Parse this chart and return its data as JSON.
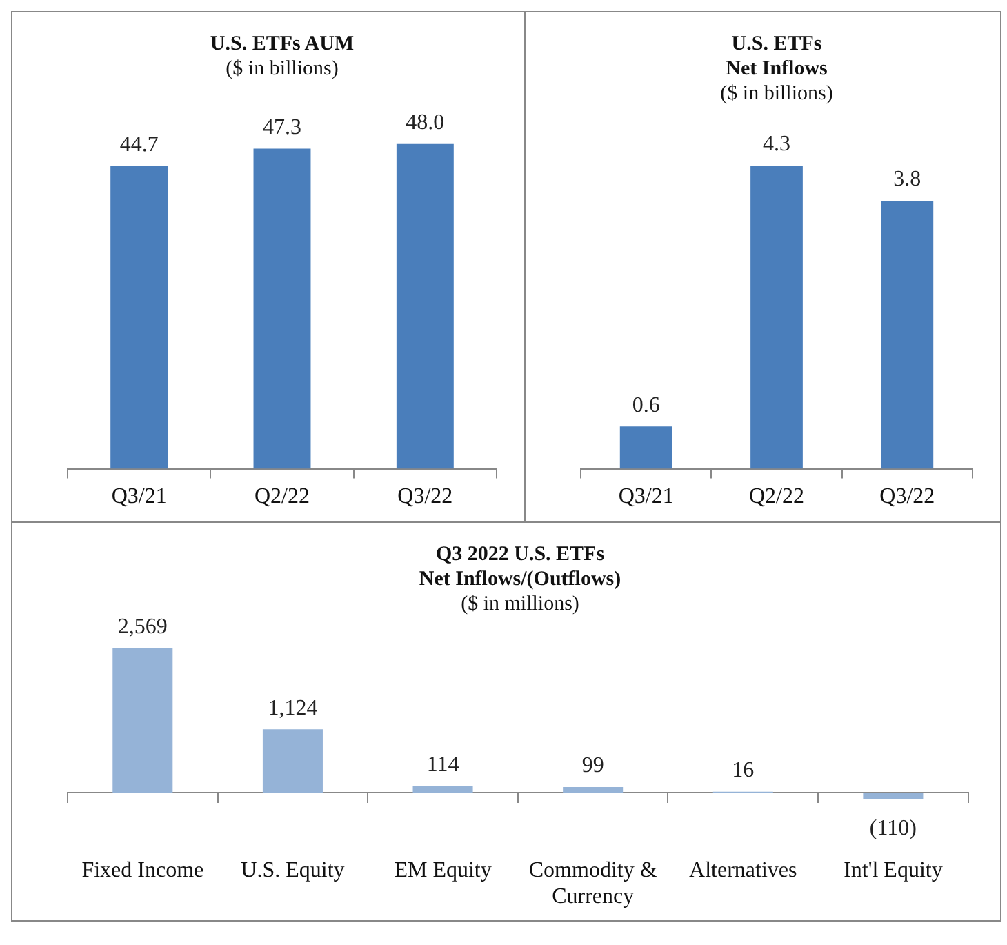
{
  "chart_data": [
    {
      "type": "bar",
      "title": "U.S. ETFs AUM",
      "subtitle": "($ in billions)",
      "categories": [
        "Q3/21",
        "Q2/22",
        "Q3/22"
      ],
      "values": [
        44.7,
        47.3,
        48.0
      ],
      "value_labels": [
        "44.7",
        "47.3",
        "48.0"
      ],
      "color": "#4a7ebb",
      "legend": false
    },
    {
      "type": "bar",
      "title": "U.S. ETFs\nNet Inflows",
      "subtitle": "($ in billions)",
      "categories": [
        "Q3/21",
        "Q2/22",
        "Q3/22"
      ],
      "values": [
        0.6,
        4.3,
        3.8
      ],
      "value_labels": [
        "0.6",
        "4.3",
        "3.8"
      ],
      "color": "#4a7ebb",
      "legend": false
    },
    {
      "type": "bar",
      "title": "Q3 2022 U.S. ETFs\nNet Inflows/(Outflows)",
      "subtitle": "($ in millions)",
      "categories": [
        "Fixed Income",
        "U.S. Equity",
        "EM Equity",
        "Commodity & Currency",
        "Alternatives",
        "Int'l Equity"
      ],
      "values": [
        2569,
        1124,
        114,
        99,
        16,
        -110
      ],
      "value_labels": [
        "2,569",
        "1,124",
        "114",
        "99",
        "16",
        "(110)"
      ],
      "color": "#95b3d7",
      "legend": false
    }
  ]
}
